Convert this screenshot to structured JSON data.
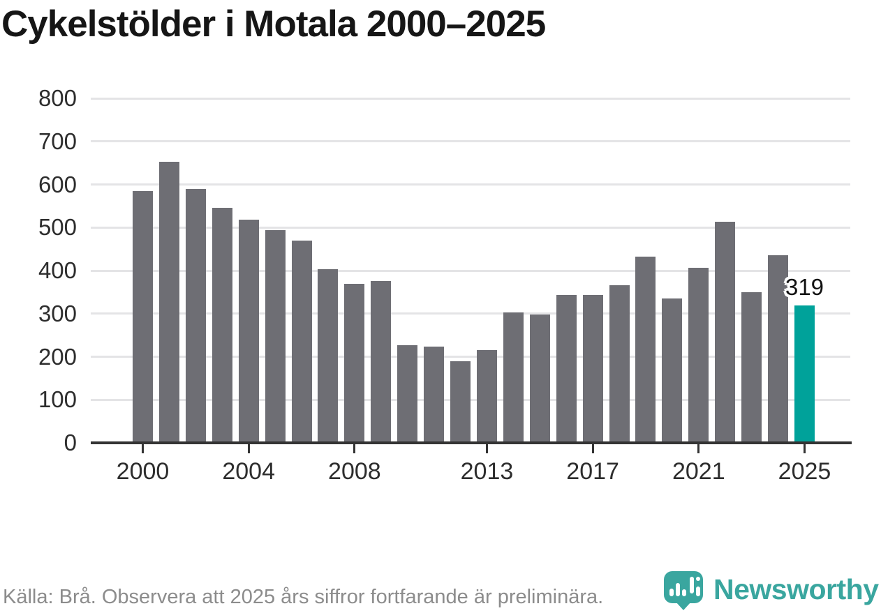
{
  "title": "Cykelstölder i Motala 2000–2025",
  "chart_data": {
    "type": "bar",
    "categories": [
      2000,
      2001,
      2002,
      2003,
      2004,
      2005,
      2006,
      2007,
      2008,
      2009,
      2010,
      2011,
      2012,
      2013,
      2014,
      2015,
      2016,
      2017,
      2018,
      2019,
      2020,
      2021,
      2022,
      2023,
      2024,
      2025
    ],
    "values": [
      585,
      653,
      590,
      546,
      518,
      494,
      470,
      403,
      370,
      375,
      227,
      224,
      190,
      215,
      303,
      298,
      343,
      343,
      366,
      432,
      335,
      407,
      514,
      350,
      436,
      319
    ],
    "title": "Cykelstölder i Motala 2000–2025",
    "xlabel": "",
    "ylabel": "",
    "ylim": [
      0,
      800
    ],
    "y_ticks": [
      0,
      100,
      200,
      300,
      400,
      500,
      600,
      700,
      800
    ],
    "x_tick_years": [
      2000,
      2004,
      2008,
      2013,
      2017,
      2021,
      2025
    ],
    "grid": true,
    "legend_position": "none",
    "bar_color": "#6e6e74",
    "highlight_year": 2025,
    "highlight_color": "#00a29a",
    "highlight_value_label": "319"
  },
  "footer": {
    "source_note": "Källa: Brå. Observera att 2025 års siffror fortfarande är preliminära."
  },
  "branding": {
    "wordmark": "Newsworthy",
    "brand_color": "#3aa69f",
    "icon": "newsworthy-pin-barchart-icon"
  }
}
